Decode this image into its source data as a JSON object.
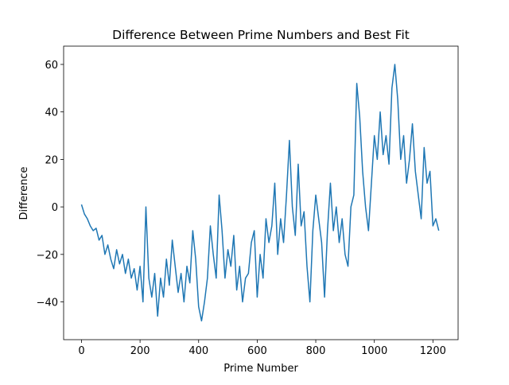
{
  "chart_data": {
    "type": "line",
    "title": "Difference Between Prime Numbers and Best Fit",
    "xlabel": "Prime Number",
    "ylabel": "Difference",
    "x": [
      0,
      10,
      20,
      30,
      40,
      50,
      60,
      70,
      80,
      90,
      100,
      110,
      120,
      130,
      140,
      150,
      160,
      170,
      180,
      190,
      200,
      210,
      220,
      230,
      240,
      250,
      260,
      270,
      280,
      290,
      300,
      310,
      320,
      330,
      340,
      350,
      360,
      370,
      380,
      390,
      400,
      410,
      420,
      430,
      440,
      450,
      460,
      470,
      480,
      490,
      500,
      510,
      520,
      530,
      540,
      550,
      560,
      570,
      580,
      590,
      600,
      610,
      620,
      630,
      640,
      650,
      660,
      670,
      680,
      690,
      700,
      710,
      720,
      730,
      740,
      750,
      760,
      770,
      780,
      790,
      800,
      810,
      820,
      830,
      840,
      850,
      860,
      870,
      880,
      890,
      900,
      910,
      920,
      930,
      940,
      950,
      960,
      970,
      980,
      990,
      1000,
      1010,
      1020,
      1030,
      1040,
      1050,
      1060,
      1070,
      1080,
      1090,
      1100,
      1110,
      1120,
      1130,
      1140,
      1150,
      1160,
      1170,
      1180,
      1190,
      1200,
      1210,
      1220
    ],
    "series": [
      {
        "color": "#1f77b4",
        "values": [
          1,
          -3,
          -5,
          -8,
          -10,
          -9,
          -14,
          -12,
          -20,
          -16,
          -22,
          -26,
          -18,
          -24,
          -20,
          -28,
          -22,
          -30,
          -26,
          -35,
          -25,
          -40,
          0,
          -30,
          -38,
          -28,
          -46,
          -30,
          -38,
          -22,
          -33,
          -14,
          -25,
          -36,
          -28,
          -40,
          -25,
          -32,
          -10,
          -22,
          -42,
          -48,
          -40,
          -30,
          -8,
          -20,
          -30,
          5,
          -10,
          -30,
          -18,
          -25,
          -12,
          -35,
          -25,
          -40,
          -30,
          -28,
          -15,
          -10,
          -38,
          -20,
          -30,
          -5,
          -15,
          -8,
          10,
          -20,
          -5,
          -15,
          5,
          28,
          0,
          -12,
          18,
          -8,
          -2,
          -25,
          -40,
          -10,
          5,
          -5,
          -15,
          -38,
          -10,
          10,
          -10,
          0,
          -15,
          -5,
          -20,
          -25,
          0,
          5,
          52,
          38,
          15,
          0,
          -10,
          10,
          30,
          20,
          40,
          22,
          30,
          18,
          50,
          60,
          45,
          20,
          30,
          10,
          20,
          35,
          15,
          5,
          -5,
          25,
          10,
          15,
          -8,
          -5,
          -10
        ]
      }
    ],
    "xlim": [
      -61,
      1286
    ],
    "ylim": [
      -55.9,
      67.7
    ],
    "xticks": [
      0,
      200,
      400,
      600,
      800,
      1000,
      1200
    ],
    "yticks": [
      {
        "value": -40,
        "label": "−40"
      },
      {
        "value": -20,
        "label": "−20"
      },
      0,
      20,
      40,
      60
    ]
  }
}
